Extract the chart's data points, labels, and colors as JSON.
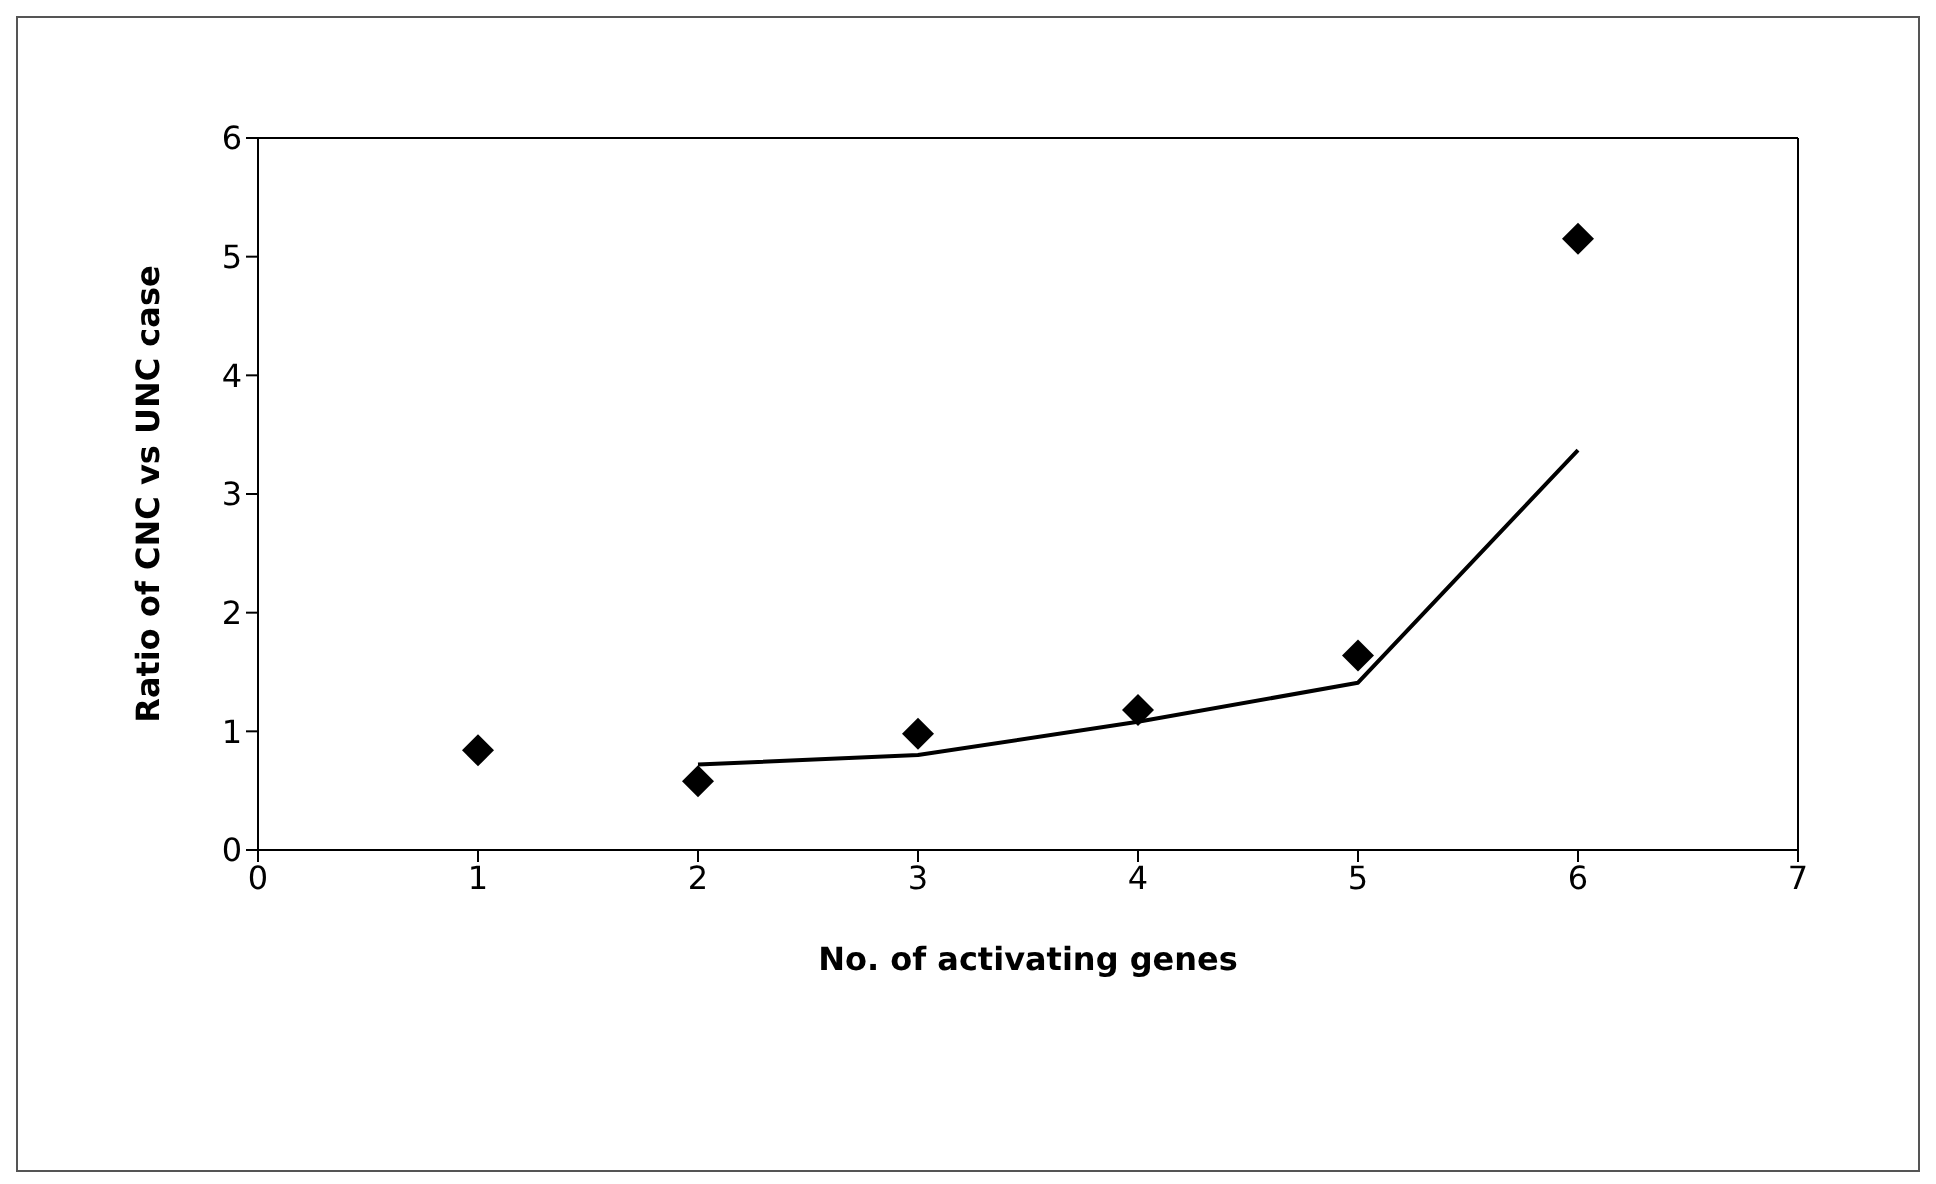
{
  "chart_data": {
    "type": "scatter",
    "xlabel": "No. of activating genes",
    "ylabel": "Ratio of CNC vs UNC case",
    "series": [
      {
        "color": "#000000",
        "marker": "diamond",
        "x": [
          1,
          2,
          3,
          4,
          5,
          6
        ],
        "values": [
          0.84,
          0.58,
          0.98,
          1.18,
          1.64,
          5.15
        ]
      },
      {
        "type": "line",
        "color": "#000000",
        "marker": "none",
        "x": [
          2,
          3,
          4,
          5,
          6
        ],
        "values": [
          0.72,
          0.8,
          1.08,
          1.41,
          3.37
        ]
      }
    ],
    "xlim": [
      0,
      7
    ],
    "xticks": [
      0,
      1,
      2,
      3,
      4,
      5,
      6,
      7
    ],
    "ylim": [
      0,
      6
    ],
    "yticks": [
      0,
      1,
      2,
      3,
      4,
      5,
      6
    ]
  }
}
